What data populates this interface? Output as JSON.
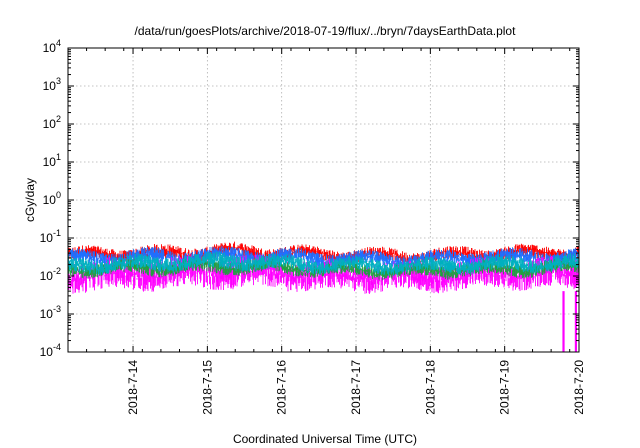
{
  "chart_data": {
    "type": "line",
    "title": "/data/run/goesPlots/archive/2018-07-19/flux/../bryn/7daysEarthData.plot",
    "xlabel": "Coordinated Universal Time (UTC)",
    "ylabel": "cGy/day",
    "yscale": "log",
    "ylim": [
      0.0001,
      10000
    ],
    "xlim": [
      "2018-07-13 03:00",
      "2018-07-20 00:00"
    ],
    "grid": true,
    "y_ticks": [
      {
        "base": "10",
        "exp": "-4"
      },
      {
        "base": "10",
        "exp": "-3"
      },
      {
        "base": "10",
        "exp": "-2"
      },
      {
        "base": "10",
        "exp": "-1"
      },
      {
        "base": "10",
        "exp": "0"
      },
      {
        "base": "10",
        "exp": "1"
      },
      {
        "base": "10",
        "exp": "2"
      },
      {
        "base": "10",
        "exp": "3"
      },
      {
        "base": "10",
        "exp": "4"
      }
    ],
    "x_ticks": [
      "2018-7-14",
      "2018-7-15",
      "2018-7-16",
      "2018-7-17",
      "2018-7-18",
      "2018-7-19",
      "2018-7-20"
    ],
    "series": [
      {
        "color": "#ff0000",
        "upper_envelope": [
          0.055,
          0.06,
          0.07,
          0.055,
          0.05,
          0.06,
          0.065
        ],
        "lower_envelope": [
          0.025,
          0.025,
          0.028,
          0.025,
          0.022,
          0.025,
          0.028
        ]
      },
      {
        "color": "#1f6fff",
        "upper_envelope": [
          0.045,
          0.05,
          0.055,
          0.045,
          0.04,
          0.05,
          0.05
        ],
        "lower_envelope": [
          0.02,
          0.02,
          0.022,
          0.02,
          0.018,
          0.02,
          0.022
        ]
      },
      {
        "color": "#00b0c0",
        "upper_envelope": [
          0.03,
          0.035,
          0.04,
          0.03,
          0.028,
          0.032,
          0.035
        ],
        "lower_envelope": [
          0.012,
          0.014,
          0.015,
          0.013,
          0.012,
          0.013,
          0.014
        ]
      },
      {
        "color": "#20a040",
        "upper_envelope": [
          0.022,
          0.025,
          0.028,
          0.022,
          0.02,
          0.024,
          0.025
        ],
        "lower_envelope": [
          0.01,
          0.011,
          0.012,
          0.01,
          0.009,
          0.01,
          0.011
        ]
      },
      {
        "color": "#ff00ff",
        "upper_envelope": [
          0.025,
          0.03,
          0.035,
          0.025,
          0.022,
          0.028,
          0.03
        ],
        "lower_envelope": [
          0.004,
          0.0045,
          0.005,
          0.0042,
          0.004,
          0.0045,
          0.0048
        ],
        "dropouts": [
          "2018-07-19 19:00",
          "2018-07-19 23:00"
        ]
      }
    ]
  }
}
